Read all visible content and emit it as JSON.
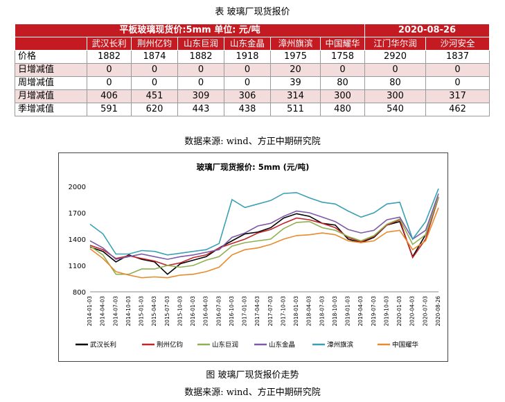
{
  "table_caption": "表    玻璃厂现货报价",
  "table": {
    "header_left": "平板玻璃现货价:5mm    单位: 元/吨",
    "header_date": "2020-08-26",
    "columns": [
      "武汉长利",
      "荆州亿钧",
      "山东巨润",
      "山东金晶",
      "漳州旗滨",
      "中国耀华",
      "江门华尔润",
      "沙河安全"
    ],
    "rows": [
      {
        "label": "价格",
        "values": [
          "1882",
          "1874",
          "1882",
          "1918",
          "1975",
          "1758",
          "2920",
          "1837"
        ]
      },
      {
        "label": "日增减值",
        "values": [
          "0",
          "0",
          "0",
          "0",
          "20",
          "0",
          "0",
          "0"
        ]
      },
      {
        "label": "周增减值",
        "values": [
          "0",
          "0",
          "0",
          "0",
          "39",
          "80",
          "80",
          "0"
        ]
      },
      {
        "label": "月增减值",
        "values": [
          "406",
          "451",
          "309",
          "306",
          "314",
          "300",
          "300",
          "317"
        ]
      },
      {
        "label": "季增减值",
        "values": [
          "591",
          "620",
          "443",
          "438",
          "511",
          "480",
          "540",
          "462"
        ]
      }
    ]
  },
  "source1": "数据来源: wind、方正中期研究院",
  "figure_caption": "图    玻璃厂现货报价走势",
  "source2": "数据来源: wind、方正中期研究院",
  "chart_data": {
    "type": "line",
    "title": "玻璃厂现货报价: 5mm (元/吨)",
    "xlabel": "",
    "ylabel": "",
    "ylim": [
      800,
      2000
    ],
    "yticks": [
      800,
      1100,
      1400,
      1700,
      2000
    ],
    "x": [
      "2014-01-03",
      "2014-04-03",
      "2014-07-03",
      "2014-10-03",
      "2015-01-03",
      "2015-04-03",
      "2015-07-03",
      "2015-10-03",
      "2016-01-03",
      "2016-04-03",
      "2016-07-03",
      "2016-10-03",
      "2017-01-03",
      "2017-04-03",
      "2017-07-03",
      "2017-10-03",
      "2018-01-03",
      "2018-04-03",
      "2018-07-03",
      "2018-10-03",
      "2019-01-03",
      "2019-04-03",
      "2019-07-03",
      "2019-10-03",
      "2020-01-03",
      "2020-04-03",
      "2020-07-03",
      "2020-08-26"
    ],
    "series": [
      {
        "name": "武汉长利",
        "color": "#000000",
        "values": [
          1310,
          1260,
          1140,
          1220,
          1170,
          1140,
          1000,
          1120,
          1160,
          1200,
          1300,
          1380,
          1460,
          1480,
          1530,
          1640,
          1690,
          1660,
          1580,
          1560,
          1400,
          1360,
          1420,
          1560,
          1600,
          1200,
          1450,
          1882
        ]
      },
      {
        "name": "荆州亿钧",
        "color": "#c0252a",
        "values": [
          1330,
          1280,
          1180,
          1210,
          1180,
          1150,
          1100,
          1130,
          1190,
          1220,
          1300,
          1350,
          1400,
          1470,
          1510,
          1580,
          1640,
          1620,
          1580,
          1530,
          1420,
          1370,
          1430,
          1560,
          1620,
          1190,
          1400,
          1874
        ]
      },
      {
        "name": "山东巨润",
        "color": "#8fb050",
        "values": [
          1320,
          1220,
          1000,
          1000,
          1060,
          1060,
          1100,
          1080,
          1100,
          1160,
          1200,
          1320,
          1360,
          1380,
          1400,
          1520,
          1590,
          1600,
          1530,
          1500,
          1430,
          1380,
          1440,
          1570,
          1630,
          1340,
          1450,
          1882
        ]
      },
      {
        "name": "山东金晶",
        "color": "#7d5aa8",
        "values": [
          1380,
          1300,
          1170,
          1200,
          1230,
          1200,
          1170,
          1200,
          1220,
          1250,
          1280,
          1420,
          1470,
          1550,
          1580,
          1660,
          1720,
          1700,
          1650,
          1600,
          1510,
          1470,
          1500,
          1620,
          1650,
          1400,
          1500,
          1918
        ]
      },
      {
        "name": "漳州旗滨",
        "color": "#3aa0b4",
        "values": [
          1570,
          1460,
          1230,
          1230,
          1270,
          1260,
          1220,
          1240,
          1260,
          1280,
          1350,
          1850,
          1760,
          1800,
          1840,
          1920,
          1930,
          1870,
          1820,
          1800,
          1720,
          1650,
          1700,
          1800,
          1820,
          1400,
          1600,
          1975
        ]
      },
      {
        "name": "中国耀华",
        "color": "#e98a2c",
        "values": [
          1290,
          1180,
          1030,
          990,
          960,
          970,
          960,
          990,
          1000,
          1030,
          1080,
          1220,
          1280,
          1300,
          1340,
          1400,
          1440,
          1450,
          1470,
          1450,
          1380,
          1360,
          1380,
          1480,
          1500,
          1280,
          1380,
          1758
        ]
      }
    ]
  }
}
